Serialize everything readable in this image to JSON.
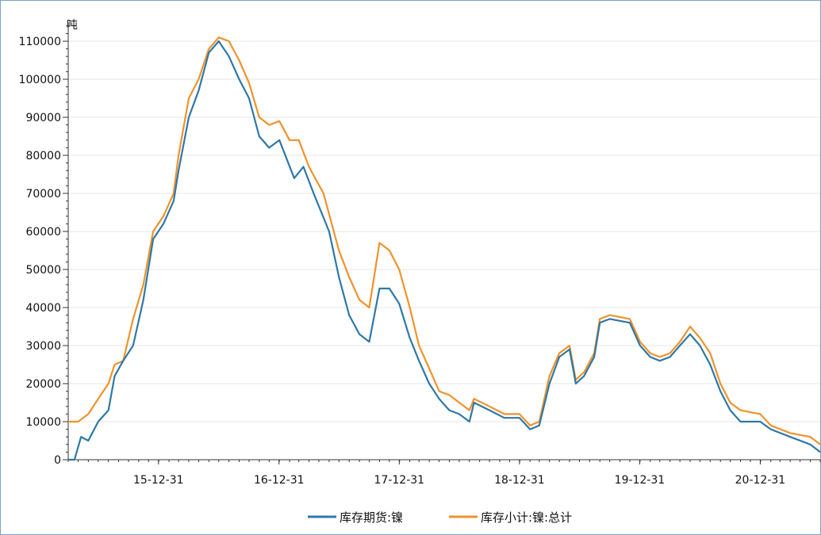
{
  "chart_data": {
    "type": "line",
    "title": "",
    "ylabel": "吨",
    "xlabel": "",
    "ylim": [
      0,
      115000
    ],
    "y_ticks": [
      0,
      10000,
      20000,
      30000,
      40000,
      50000,
      60000,
      70000,
      80000,
      90000,
      100000,
      110000
    ],
    "y_tick_labels": [
      "0",
      "10000",
      "20000",
      "30000",
      "40000",
      "50000",
      "60000",
      "70000",
      "80000",
      "90000",
      "100000",
      "110000"
    ],
    "xlim": [
      "2015-04-01",
      "2021-07-01"
    ],
    "x_ticks": [
      "2015-12-31",
      "2016-12-31",
      "2017-12-31",
      "2018-12-31",
      "2019-12-31",
      "2020-12-31"
    ],
    "x_tick_labels": [
      "15-12-31",
      "16-12-31",
      "17-12-31",
      "18-12-31",
      "19-12-31",
      "20-12-31"
    ],
    "grid": {
      "horizontal": true,
      "vertical": false
    },
    "legend_position": "bottom",
    "series": [
      {
        "name": "库存期货:镍",
        "color": "#2e78a8",
        "points": [
          [
            "2015-04-01",
            0
          ],
          [
            "2015-04-20",
            0
          ],
          [
            "2015-05-10",
            6000
          ],
          [
            "2015-06-01",
            5000
          ],
          [
            "2015-07-01",
            10000
          ],
          [
            "2015-08-01",
            13000
          ],
          [
            "2015-08-20",
            22000
          ],
          [
            "2015-09-15",
            26000
          ],
          [
            "2015-10-15",
            30000
          ],
          [
            "2015-11-15",
            42000
          ],
          [
            "2015-12-15",
            58000
          ],
          [
            "2016-01-15",
            62000
          ],
          [
            "2016-02-15",
            68000
          ],
          [
            "2016-03-01",
            76000
          ],
          [
            "2016-04-01",
            90000
          ],
          [
            "2016-05-01",
            97000
          ],
          [
            "2016-06-01",
            107000
          ],
          [
            "2016-07-01",
            110000
          ],
          [
            "2016-08-01",
            106000
          ],
          [
            "2016-09-01",
            100000
          ],
          [
            "2016-10-01",
            95000
          ],
          [
            "2016-11-01",
            85000
          ],
          [
            "2016-12-01",
            82000
          ],
          [
            "2017-01-01",
            84000
          ],
          [
            "2017-02-15",
            74000
          ],
          [
            "2017-03-15",
            77000
          ],
          [
            "2017-04-15",
            70000
          ],
          [
            "2017-06-01",
            60000
          ],
          [
            "2017-07-01",
            48000
          ],
          [
            "2017-08-01",
            38000
          ],
          [
            "2017-09-01",
            33000
          ],
          [
            "2017-10-01",
            31000
          ],
          [
            "2017-11-01",
            45000
          ],
          [
            "2017-12-01",
            45000
          ],
          [
            "2017-12-31",
            41000
          ],
          [
            "2018-02-01",
            32000
          ],
          [
            "2018-03-01",
            26000
          ],
          [
            "2018-04-01",
            20000
          ],
          [
            "2018-05-01",
            16000
          ],
          [
            "2018-06-01",
            13000
          ],
          [
            "2018-07-01",
            12000
          ],
          [
            "2018-08-01",
            10000
          ],
          [
            "2018-08-15",
            15000
          ],
          [
            "2018-10-01",
            13000
          ],
          [
            "2018-11-15",
            11000
          ],
          [
            "2018-12-31",
            11000
          ],
          [
            "2019-02-01",
            8000
          ],
          [
            "2019-03-01",
            9000
          ],
          [
            "2019-04-01",
            20000
          ],
          [
            "2019-05-01",
            27000
          ],
          [
            "2019-06-01",
            29000
          ],
          [
            "2019-06-20",
            20000
          ],
          [
            "2019-07-15",
            22000
          ],
          [
            "2019-08-15",
            27000
          ],
          [
            "2019-09-01",
            36000
          ],
          [
            "2019-10-01",
            37000
          ],
          [
            "2019-12-01",
            36000
          ],
          [
            "2020-01-01",
            30000
          ],
          [
            "2020-02-01",
            27000
          ],
          [
            "2020-03-01",
            26000
          ],
          [
            "2020-04-01",
            27000
          ],
          [
            "2020-05-01",
            30000
          ],
          [
            "2020-06-01",
            33000
          ],
          [
            "2020-07-01",
            30000
          ],
          [
            "2020-08-01",
            25000
          ],
          [
            "2020-09-01",
            18000
          ],
          [
            "2020-10-01",
            13000
          ],
          [
            "2020-11-01",
            10000
          ],
          [
            "2020-12-31",
            10000
          ],
          [
            "2021-02-01",
            8000
          ],
          [
            "2021-04-01",
            6000
          ],
          [
            "2021-06-01",
            4000
          ],
          [
            "2021-07-01",
            2000
          ]
        ]
      },
      {
        "name": "库存小计:镍:总计",
        "color": "#f0922a",
        "points": [
          [
            "2015-04-01",
            10000
          ],
          [
            "2015-05-01",
            10000
          ],
          [
            "2015-06-01",
            12000
          ],
          [
            "2015-07-01",
            16000
          ],
          [
            "2015-08-01",
            20000
          ],
          [
            "2015-08-20",
            25000
          ],
          [
            "2015-09-15",
            26000
          ],
          [
            "2015-10-15",
            37000
          ],
          [
            "2015-11-15",
            46000
          ],
          [
            "2015-12-15",
            60000
          ],
          [
            "2016-01-15",
            64000
          ],
          [
            "2016-02-15",
            70000
          ],
          [
            "2016-03-01",
            80000
          ],
          [
            "2016-04-01",
            95000
          ],
          [
            "2016-05-01",
            100000
          ],
          [
            "2016-06-01",
            108000
          ],
          [
            "2016-07-01",
            111000
          ],
          [
            "2016-08-01",
            110000
          ],
          [
            "2016-09-01",
            105000
          ],
          [
            "2016-10-01",
            99000
          ],
          [
            "2016-11-01",
            90000
          ],
          [
            "2016-12-01",
            88000
          ],
          [
            "2017-01-01",
            89000
          ],
          [
            "2017-02-01",
            84000
          ],
          [
            "2017-03-01",
            84000
          ],
          [
            "2017-04-01",
            77000
          ],
          [
            "2017-05-15",
            70000
          ],
          [
            "2017-07-01",
            55000
          ],
          [
            "2017-08-01",
            48000
          ],
          [
            "2017-09-01",
            42000
          ],
          [
            "2017-10-01",
            40000
          ],
          [
            "2017-11-01",
            57000
          ],
          [
            "2017-12-01",
            55000
          ],
          [
            "2017-12-31",
            50000
          ],
          [
            "2018-02-01",
            40000
          ],
          [
            "2018-03-01",
            30000
          ],
          [
            "2018-04-01",
            24000
          ],
          [
            "2018-05-01",
            18000
          ],
          [
            "2018-06-01",
            17000
          ],
          [
            "2018-07-01",
            15000
          ],
          [
            "2018-08-01",
            13000
          ],
          [
            "2018-08-15",
            16000
          ],
          [
            "2018-10-01",
            14000
          ],
          [
            "2018-11-15",
            12000
          ],
          [
            "2018-12-31",
            12000
          ],
          [
            "2019-02-01",
            9000
          ],
          [
            "2019-03-01",
            10000
          ],
          [
            "2019-04-01",
            22000
          ],
          [
            "2019-05-01",
            28000
          ],
          [
            "2019-06-01",
            30000
          ],
          [
            "2019-06-20",
            21000
          ],
          [
            "2019-07-15",
            23000
          ],
          [
            "2019-08-15",
            28000
          ],
          [
            "2019-09-01",
            37000
          ],
          [
            "2019-10-01",
            38000
          ],
          [
            "2019-12-01",
            37000
          ],
          [
            "2020-01-01",
            31000
          ],
          [
            "2020-02-01",
            28000
          ],
          [
            "2020-03-01",
            27000
          ],
          [
            "2020-04-01",
            28000
          ],
          [
            "2020-05-01",
            31000
          ],
          [
            "2020-06-01",
            35000
          ],
          [
            "2020-07-01",
            32000
          ],
          [
            "2020-08-01",
            28000
          ],
          [
            "2020-09-01",
            20000
          ],
          [
            "2020-10-01",
            15000
          ],
          [
            "2020-11-01",
            13000
          ],
          [
            "2020-12-31",
            12000
          ],
          [
            "2021-02-01",
            9000
          ],
          [
            "2021-04-01",
            7000
          ],
          [
            "2021-06-01",
            6000
          ],
          [
            "2021-07-01",
            4000
          ]
        ]
      }
    ]
  }
}
